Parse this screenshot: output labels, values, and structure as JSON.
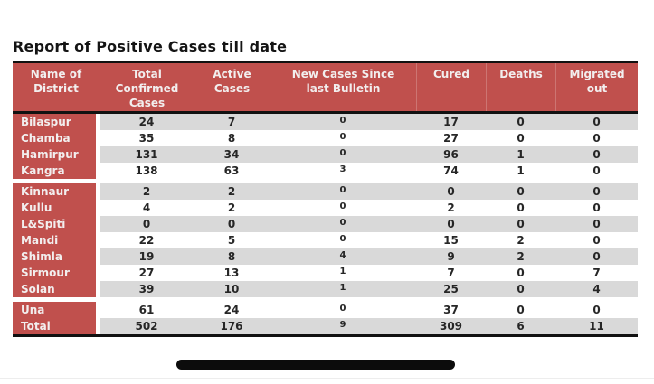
{
  "title": "Report of Positive Cases till date",
  "table": {
    "columns": [
      {
        "label": "Name of District",
        "lines": [
          "Name of",
          "District"
        ]
      },
      {
        "label": "Total Confirmed Cases",
        "lines": [
          "Total",
          "Confirmed",
          "Cases"
        ]
      },
      {
        "label": "Active Cases",
        "lines": [
          "Active",
          "Cases"
        ]
      },
      {
        "label": "New Cases Since last Bulletin",
        "lines": [
          "New Cases Since",
          "last Bulletin"
        ]
      },
      {
        "label": "Cured",
        "lines": [
          "Cured"
        ]
      },
      {
        "label": "Deaths",
        "lines": [
          "Deaths"
        ]
      },
      {
        "label": "Migrated out",
        "lines": [
          "Migrated",
          "out"
        ]
      }
    ],
    "rows": [
      {
        "district": "Bilaspur",
        "values": [
          24,
          7,
          0,
          17,
          0,
          0
        ]
      },
      {
        "district": "Chamba",
        "values": [
          35,
          8,
          0,
          27,
          0,
          0
        ]
      },
      {
        "district": "Hamirpur",
        "values": [
          131,
          34,
          0,
          96,
          1,
          0
        ]
      },
      {
        "district": "Kangra",
        "values": [
          138,
          63,
          3,
          74,
          1,
          0
        ]
      },
      {
        "district": "Kinnaur",
        "values": [
          2,
          2,
          0,
          0,
          0,
          0
        ]
      },
      {
        "district": "Kullu",
        "values": [
          4,
          2,
          0,
          2,
          0,
          0
        ]
      },
      {
        "district": "L&Spiti",
        "values": [
          0,
          0,
          0,
          0,
          0,
          0
        ]
      },
      {
        "district": "Mandi",
        "values": [
          22,
          5,
          0,
          15,
          2,
          0
        ]
      },
      {
        "district": "Shimla",
        "values": [
          19,
          8,
          4,
          9,
          2,
          0
        ]
      },
      {
        "district": "Sirmour",
        "values": [
          27,
          13,
          1,
          7,
          0,
          7
        ]
      },
      {
        "district": "Solan",
        "values": [
          39,
          10,
          1,
          25,
          0,
          4
        ]
      },
      {
        "district": "Una",
        "values": [
          61,
          24,
          0,
          37,
          0,
          0
        ]
      }
    ],
    "total_row": {
      "district": "Total",
      "values": [
        502,
        176,
        9,
        309,
        6,
        11
      ]
    },
    "group_break_after": [
      "Kangra",
      "Solan"
    ]
  },
  "colors": {
    "header_red": "#c0504d",
    "band_gray": "#d9d9d9",
    "band_white": "#ffffff",
    "border_black": "#111111",
    "value_text": "#262626",
    "header_text": "#f2eeee"
  }
}
